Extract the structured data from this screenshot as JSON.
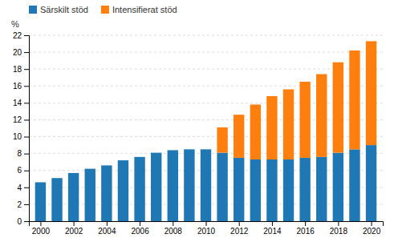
{
  "chart_data": {
    "type": "bar",
    "stacked": true,
    "y_label": "%",
    "x": [
      2000,
      2001,
      2002,
      2003,
      2004,
      2005,
      2006,
      2007,
      2008,
      2009,
      2010,
      2011,
      2012,
      2013,
      2014,
      2015,
      2016,
      2017,
      2018,
      2019,
      2020
    ],
    "series": [
      {
        "name": "Särskilt stöd",
        "values": [
          4.6,
          5.1,
          5.7,
          6.2,
          6.6,
          7.2,
          7.6,
          8.1,
          8.4,
          8.5,
          8.5,
          8.1,
          7.5,
          7.3,
          7.3,
          7.3,
          7.5,
          7.6,
          8.1,
          8.5,
          9.0
        ]
      },
      {
        "name": "Intensifierat stöd",
        "values": [
          0.0,
          0.0,
          0.0,
          0.0,
          0.0,
          0.0,
          0.0,
          0.0,
          0.0,
          0.0,
          0.0,
          3.0,
          5.1,
          6.5,
          7.5,
          8.3,
          9.0,
          9.8,
          10.7,
          11.7,
          12.3
        ]
      }
    ],
    "xlim": [
      1999.3,
      2020.7
    ],
    "xticks": [
      2000,
      2002,
      2004,
      2006,
      2008,
      2010,
      2012,
      2014,
      2016,
      2018,
      2020
    ],
    "ylim": [
      0,
      22
    ],
    "yticks": [
      0,
      2,
      4,
      6,
      8,
      10,
      12,
      14,
      16,
      18,
      20,
      22
    ],
    "grid": true,
    "legend": "upper left"
  }
}
